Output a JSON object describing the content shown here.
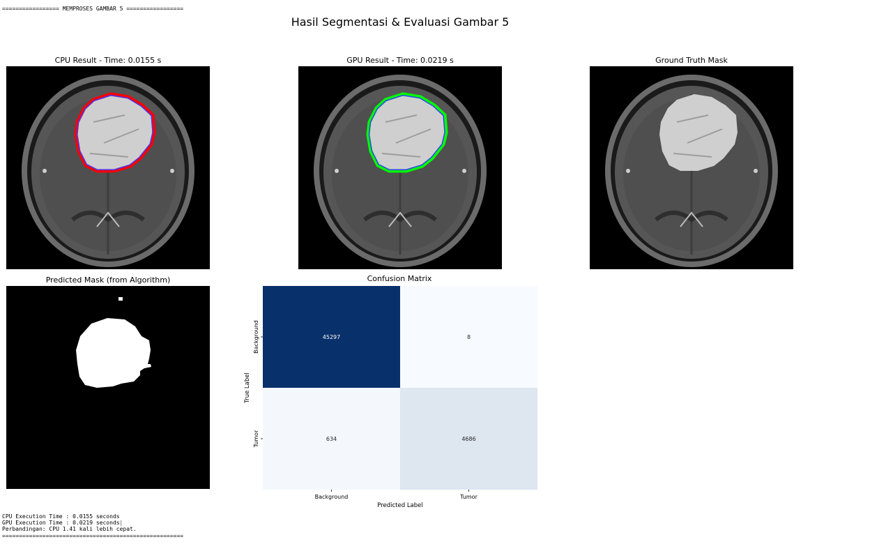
{
  "console": {
    "header": "================= MEMPROSES GAMBAR 5 =================",
    "lines": [
      "CPU Execution Time : 0.0155 seconds",
      "GPU Execution Time : 0.0219 seconds",
      "Perbandingan: CPU 1.41 kali lebih cepat.",
      "======================================================"
    ]
  },
  "figure": {
    "title": "Hasil Segmentasi & Evaluasi Gambar 5",
    "panels": {
      "cpu": "CPU Result - Time: 0.0155 s",
      "gpu": "GPU Result - Time: 0.0219 s",
      "ground_truth": "Ground Truth Mask",
      "predicted": "Predicted Mask (from Algorithm)"
    },
    "colors": {
      "cpu_contour": "#ff0000",
      "gpu_contour": "#00ff00",
      "inner_contour": "#3a3aff"
    }
  },
  "chart_data": {
    "type": "heatmap",
    "title": "Confusion Matrix",
    "xlabel": "Predicted Label",
    "ylabel": "True Label",
    "x_categories": [
      "Background",
      "Tumor"
    ],
    "y_categories": [
      "Background",
      "Tumor"
    ],
    "values": [
      [
        45297,
        8
      ],
      [
        634,
        4686
      ]
    ],
    "colormap": "Blues",
    "colorbar": false
  }
}
